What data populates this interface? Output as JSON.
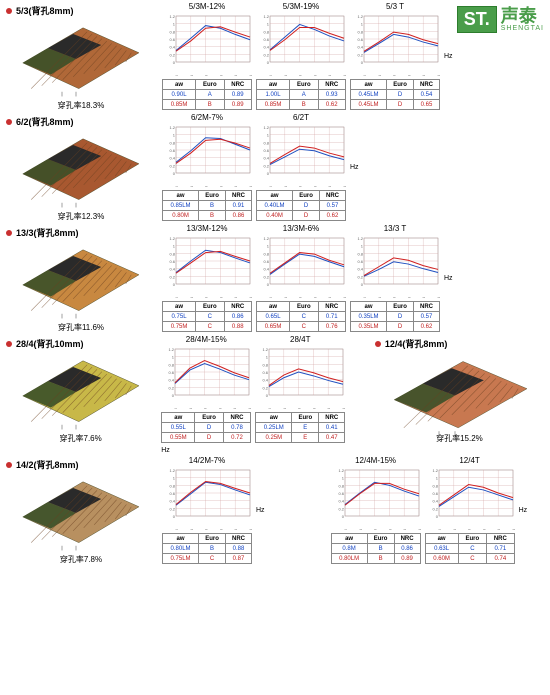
{
  "logo": {
    "mark": "ST.",
    "cn": "声泰",
    "en": "SHENGTAI"
  },
  "x_ticks": [
    "125",
    "250",
    "500",
    "1000",
    "2000",
    "4000"
  ],
  "hz": "Hz",
  "table_headers": [
    "aw",
    "Euro",
    "NRC"
  ],
  "sections": [
    {
      "title": "5/3(背孔8mm)",
      "caption": "穿孔率18.3%",
      "panel_color": "#b06838",
      "charts": [
        {
          "title": "5/3M-12%",
          "blue": [
            0.3,
            0.62,
            0.95,
            0.88,
            0.72,
            0.58
          ],
          "red": [
            0.28,
            0.55,
            0.88,
            0.92,
            0.78,
            0.65
          ],
          "rows": [
            [
              "0.90L",
              "A",
              "0.89"
            ],
            [
              "0.85M",
              "B",
              "0.89"
            ]
          ]
        },
        {
          "title": "5/3M-19%",
          "blue": [
            0.32,
            0.65,
            0.98,
            0.85,
            0.68,
            0.55
          ],
          "red": [
            0.3,
            0.58,
            0.9,
            0.9,
            0.75,
            0.62
          ],
          "rows": [
            [
              "1.00L",
              "A",
              "0.93"
            ],
            [
              "0.85M",
              "B",
              "0.62"
            ]
          ]
        },
        {
          "title": "5/3 T",
          "blue": [
            0.25,
            0.48,
            0.72,
            0.65,
            0.52,
            0.42
          ],
          "red": [
            0.28,
            0.52,
            0.78,
            0.72,
            0.58,
            0.48
          ],
          "rows": [
            [
              "0.45LM",
              "D",
              "0.54"
            ],
            [
              "0.45LM",
              "D",
              "0.65"
            ]
          ]
        }
      ]
    },
    {
      "title": "6/2(背孔8mm)",
      "caption": "穿孔率12.3%",
      "panel_color": "#a85830",
      "charts": [
        {
          "title": "6/2M-7%",
          "blue": [
            0.28,
            0.58,
            0.92,
            0.9,
            0.75,
            0.6
          ],
          "red": [
            0.25,
            0.52,
            0.85,
            0.88,
            0.78,
            0.65
          ],
          "rows": [
            [
              "0.85LM",
              "B",
              "0.91"
            ],
            [
              "0.80M",
              "B",
              "0.86"
            ]
          ]
        },
        {
          "title": "6/2T",
          "blue": [
            0.22,
            0.42,
            0.62,
            0.58,
            0.45,
            0.35
          ],
          "red": [
            0.25,
            0.48,
            0.7,
            0.65,
            0.52,
            0.42
          ],
          "rows": [
            [
              "0.40LM",
              "D",
              "0.57"
            ],
            [
              "0.40M",
              "D",
              "0.62"
            ]
          ]
        }
      ]
    },
    {
      "title": "13/3(背孔8mm)",
      "caption": "穿孔率11.6%",
      "panel_color": "#c88840",
      "charts": [
        {
          "title": "13/3M-12%",
          "blue": [
            0.3,
            0.6,
            0.88,
            0.82,
            0.68,
            0.55
          ],
          "red": [
            0.28,
            0.55,
            0.82,
            0.85,
            0.72,
            0.6
          ],
          "rows": [
            [
              "0.75L",
              "C",
              "0.86"
            ],
            [
              "0.75M",
              "C",
              "0.88"
            ]
          ]
        },
        {
          "title": "13/3M-6%",
          "blue": [
            0.25,
            0.52,
            0.78,
            0.72,
            0.58,
            0.45
          ],
          "red": [
            0.28,
            0.55,
            0.82,
            0.78,
            0.62,
            0.5
          ],
          "rows": [
            [
              "0.65L",
              "C",
              "0.71"
            ],
            [
              "0.65M",
              "C",
              "0.76"
            ]
          ]
        },
        {
          "title": "13/3 T",
          "blue": [
            0.2,
            0.38,
            0.58,
            0.52,
            0.4,
            0.3
          ],
          "red": [
            0.22,
            0.45,
            0.68,
            0.62,
            0.48,
            0.38
          ],
          "rows": [
            [
              "0.35LM",
              "D",
              "0.57"
            ],
            [
              "0.35LM",
              "D",
              "0.62"
            ]
          ]
        }
      ]
    },
    {
      "title": "28/4(背孔10mm)",
      "caption": "穿孔率7.6%",
      "panel_color": "#c8b848",
      "charts": [
        {
          "title": "28/4M-15%",
          "blue": [
            0.3,
            0.65,
            0.82,
            0.68,
            0.52,
            0.4
          ],
          "red": [
            0.32,
            0.7,
            0.9,
            0.75,
            0.58,
            0.45
          ],
          "rows": [
            [
              "0.55L",
              "D",
              "0.78"
            ],
            [
              "0.55M",
              "D",
              "0.72"
            ]
          ]
        },
        {
          "title": "28/4T",
          "blue": [
            0.22,
            0.45,
            0.6,
            0.5,
            0.38,
            0.28
          ],
          "red": [
            0.25,
            0.52,
            0.68,
            0.58,
            0.45,
            0.35
          ],
          "rows": [
            [
              "0.25LM",
              "E",
              "0.41"
            ],
            [
              "0.25M",
              "E",
              "0.47"
            ]
          ]
        }
      ],
      "right_panel": {
        "title": "12/4(背孔8mm)",
        "caption": "穿孔率15.2%",
        "panel_color": "#c87850"
      }
    },
    {
      "title": "14/2(背孔8mm)",
      "caption": "穿孔率7.8%",
      "panel_color": "#b89060",
      "charts": [
        {
          "title": "14/2M-7%",
          "blue": [
            0.28,
            0.58,
            0.88,
            0.82,
            0.68,
            0.55
          ],
          "red": [
            0.3,
            0.62,
            0.9,
            0.85,
            0.72,
            0.6
          ],
          "rows": [
            [
              "0.80LM",
              "B",
              "0.88"
            ],
            [
              "0.75LM",
              "C",
              "0.87"
            ]
          ]
        }
      ],
      "right_charts": [
        {
          "title": "12/4M-15%",
          "blue": [
            0.3,
            0.6,
            0.88,
            0.8,
            0.65,
            0.52
          ],
          "red": [
            0.28,
            0.58,
            0.85,
            0.85,
            0.7,
            0.58
          ],
          "rows": [
            [
              "0.8M",
              "B",
              "0.86"
            ],
            [
              "0.80LM",
              "B",
              "0.89"
            ]
          ]
        },
        {
          "title": "12/4T",
          "blue": [
            0.25,
            0.5,
            0.75,
            0.68,
            0.55,
            0.42
          ],
          "red": [
            0.28,
            0.55,
            0.82,
            0.75,
            0.6,
            0.48
          ],
          "rows": [
            [
              "0.63L",
              "C",
              "0.71"
            ],
            [
              "0.60M",
              "C",
              "0.74"
            ]
          ]
        }
      ]
    }
  ],
  "chart_style": {
    "grid_color": "#d0a0a0",
    "blue": "#2050c0",
    "red": "#d02020",
    "bg": "#ffffff",
    "y_ticks": [
      0,
      0.2,
      0.4,
      0.6,
      0.8,
      1.0,
      1.2
    ]
  }
}
